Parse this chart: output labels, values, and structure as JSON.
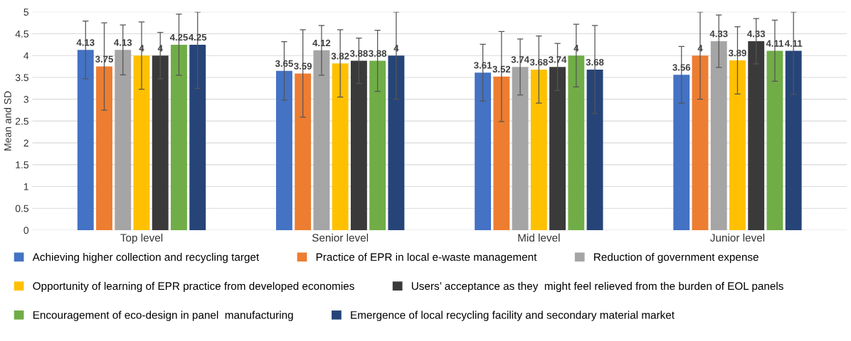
{
  "chart_data": {
    "type": "bar",
    "ylabel": "Mean and SD",
    "categories": [
      "Top level",
      "Senior level",
      "Mid level",
      "Junior level"
    ],
    "series": [
      {
        "name": "Achieving higher collection and recycling target",
        "color": "#4472c4",
        "values": [
          4.13,
          3.65,
          3.61,
          3.56
        ],
        "errors": [
          0.66,
          0.67,
          0.65,
          0.65
        ]
      },
      {
        "name": "Practice of EPR in local e-waste management",
        "color": "#ed7d31",
        "values": [
          3.75,
          3.59,
          3.52,
          4
        ],
        "errors": [
          1.0,
          1.0,
          1.03,
          1.0
        ]
      },
      {
        "name": "Reduction of government expense",
        "color": "#a5a5a5",
        "values": [
          4.13,
          4.12,
          3.74,
          4.33
        ],
        "errors": [
          0.57,
          0.57,
          0.64,
          0.6
        ]
      },
      {
        "name": "Opportunity of learning of EPR practice from developed economies",
        "color": "#ffc000",
        "values": [
          4,
          3.82,
          3.68,
          3.89
        ],
        "errors": [
          0.77,
          0.77,
          0.77,
          0.77
        ]
      },
      {
        "name": "Users’ acceptance as they  might feel relieved from the burden of EOL panels",
        "color": "#3a3a3a",
        "values": [
          4,
          3.88,
          3.74,
          4.33
        ],
        "errors": [
          0.53,
          0.52,
          0.54,
          0.52
        ]
      },
      {
        "name": "Encouragement of eco-design in panel  manufacturing",
        "color": "#70ad47",
        "values": [
          4.25,
          3.88,
          4,
          4.11
        ],
        "errors": [
          0.7,
          0.7,
          0.72,
          0.7
        ]
      },
      {
        "name": "Emergence of local recycling facility and secondary material market",
        "color": "#264478",
        "values": [
          4.25,
          4,
          3.68,
          4.11
        ],
        "errors": [
          [
            3.25,
            5
          ],
          1.0,
          1.01,
          [
            3.11,
            5
          ]
        ]
      }
    ],
    "ylim": [
      0,
      5
    ],
    "yticks": [
      0,
      0.5,
      1,
      1.5,
      2,
      2.5,
      3,
      3.5,
      4,
      4.5,
      5
    ],
    "grid": "y",
    "legend": "bottom",
    "data_labels": true
  }
}
